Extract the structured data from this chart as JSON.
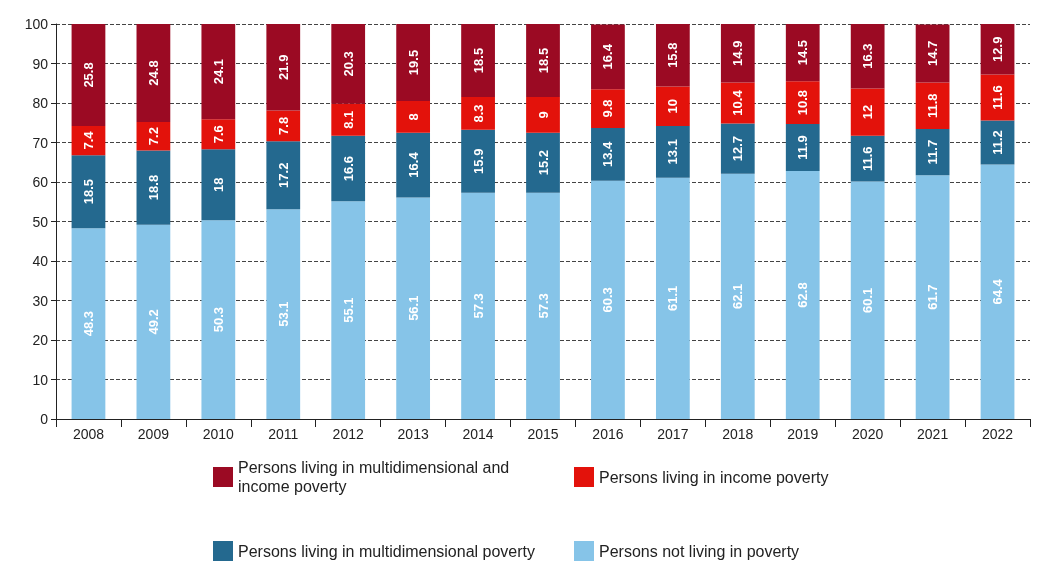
{
  "chart_data": {
    "type": "bar",
    "stacked": true,
    "data_labels": true,
    "grid": "y",
    "legend": "bottom",
    "categories": [
      "2008",
      "2009",
      "2010",
      "2011",
      "2012",
      "2013",
      "2014",
      "2015",
      "2016",
      "2017",
      "2018",
      "2019",
      "2020",
      "2021",
      "2022"
    ],
    "ylim": [
      0,
      100
    ],
    "yticks": [
      0,
      10,
      20,
      30,
      40,
      50,
      60,
      70,
      80,
      90,
      100
    ],
    "series": [
      {
        "name": "Persons not living in poverty",
        "color": "#86c4e8",
        "values": [
          48.3,
          49.2,
          50.3,
          53.1,
          55.1,
          56.1,
          57.3,
          57.3,
          60.3,
          61.1,
          62.1,
          62.8,
          60.1,
          61.7,
          64.4
        ]
      },
      {
        "name": "Persons living in multidimensional poverty",
        "color": "#24698f",
        "values": [
          18.5,
          18.8,
          18,
          17.2,
          16.6,
          16.4,
          15.9,
          15.2,
          13.4,
          13.1,
          12.7,
          11.9,
          11.6,
          11.7,
          11.2
        ]
      },
      {
        "name": "Persons living in income poverty",
        "color": "#e3120b",
        "values": [
          7.4,
          7.2,
          7.6,
          7.8,
          8.1,
          8,
          8.3,
          9,
          9.8,
          10,
          10.4,
          10.8,
          12,
          11.8,
          11.6
        ]
      },
      {
        "name": "Persons living in multidimensional and income poverty",
        "color": "#9b0a23",
        "values": [
          25.8,
          24.8,
          24.1,
          21.9,
          20.3,
          19.5,
          18.5,
          18.5,
          16.4,
          15.8,
          14.9,
          14.5,
          16.3,
          14.7,
          12.9
        ]
      }
    ]
  }
}
